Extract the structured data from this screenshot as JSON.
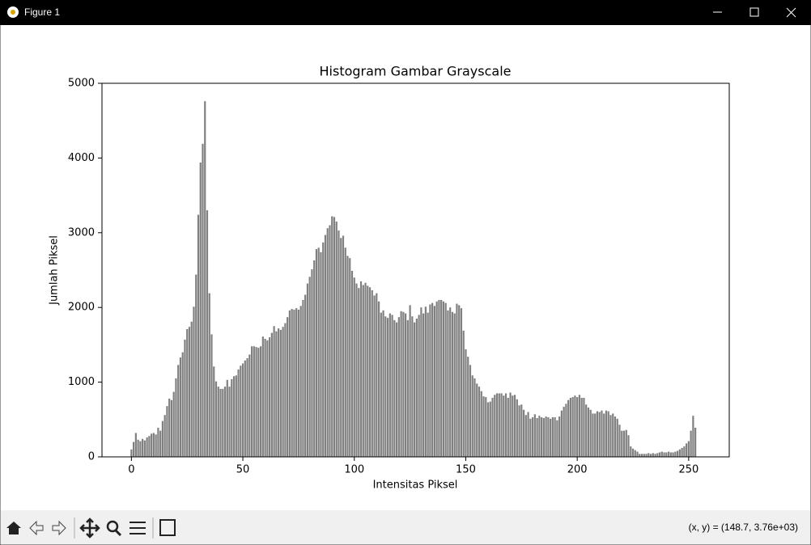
{
  "window": {
    "title": "Figure 1",
    "status": "(x, y) = (148.7, 3.76e+03)"
  },
  "chart_data": {
    "type": "bar",
    "title": "Histogram Gambar Grayscale",
    "x_label": "Intensitas Piksel",
    "y_label": "Jumlah Piksel",
    "color": "#808080",
    "bar_width": 0.8,
    "x": [
      0,
      1,
      2,
      3,
      4,
      5,
      6,
      7,
      8,
      9,
      10,
      11,
      12,
      13,
      14,
      15,
      16,
      17,
      18,
      19,
      20,
      21,
      22,
      23,
      24,
      25,
      26,
      27,
      28,
      29,
      30,
      31,
      32,
      33,
      34,
      35,
      36,
      37,
      38,
      39,
      40,
      41,
      42,
      43,
      44,
      45,
      46,
      47,
      48,
      49,
      50,
      51,
      52,
      53,
      54,
      55,
      56,
      57,
      58,
      59,
      60,
      61,
      62,
      63,
      64,
      65,
      66,
      67,
      68,
      69,
      70,
      71,
      72,
      73,
      74,
      75,
      76,
      77,
      78,
      79,
      80,
      81,
      82,
      83,
      84,
      85,
      86,
      87,
      88,
      89,
      90,
      91,
      92,
      93,
      94,
      95,
      96,
      97,
      98,
      99,
      100,
      101,
      102,
      103,
      104,
      105,
      106,
      107,
      108,
      109,
      110,
      111,
      112,
      113,
      114,
      115,
      116,
      117,
      118,
      119,
      120,
      121,
      122,
      123,
      124,
      125,
      126,
      127,
      128,
      129,
      130,
      131,
      132,
      133,
      134,
      135,
      136,
      137,
      138,
      139,
      140,
      141,
      142,
      143,
      144,
      145,
      146,
      147,
      148,
      149,
      150,
      151,
      152,
      153,
      154,
      155,
      156,
      157,
      158,
      159,
      160,
      161,
      162,
      163,
      164,
      165,
      166,
      167,
      168,
      169,
      170,
      171,
      172,
      173,
      174,
      175,
      176,
      177,
      178,
      179,
      180,
      181,
      182,
      183,
      184,
      185,
      186,
      187,
      188,
      189,
      190,
      191,
      192,
      193,
      194,
      195,
      196,
      197,
      198,
      199,
      200,
      201,
      202,
      203,
      204,
      205,
      206,
      207,
      208,
      209,
      210,
      211,
      212,
      213,
      214,
      215,
      216,
      217,
      218,
      219,
      220,
      221,
      222,
      223,
      224,
      225,
      226,
      227,
      228,
      229,
      230,
      231,
      232,
      233,
      234,
      235,
      236,
      237,
      238,
      239,
      240,
      241,
      242,
      243,
      244,
      245,
      246,
      247,
      248,
      249,
      250,
      251,
      252,
      253,
      254,
      255
    ],
    "values": [
      100,
      200,
      320,
      230,
      210,
      240,
      220,
      260,
      280,
      310,
      320,
      300,
      390,
      350,
      480,
      560,
      680,
      780,
      760,
      870,
      1050,
      1230,
      1330,
      1400,
      1570,
      1710,
      1740,
      1810,
      2010,
      2440,
      3240,
      3940,
      4190,
      4760,
      3300,
      2190,
      1640,
      1210,
      1010,
      940,
      910,
      910,
      940,
      1030,
      940,
      1040,
      1080,
      1090,
      1170,
      1220,
      1250,
      1290,
      1320,
      1370,
      1480,
      1480,
      1470,
      1460,
      1480,
      1610,
      1580,
      1560,
      1600,
      1660,
      1750,
      1680,
      1720,
      1700,
      1740,
      1790,
      1870,
      1960,
      1980,
      1970,
      1990,
      1970,
      2020,
      2100,
      2170,
      2320,
      2410,
      2510,
      2630,
      2780,
      2800,
      2740,
      2870,
      2970,
      3060,
      3100,
      3220,
      3210,
      3150,
      3030,
      2930,
      2960,
      2800,
      2690,
      2660,
      2490,
      2400,
      2320,
      2260,
      2350,
      2300,
      2330,
      2290,
      2270,
      2230,
      2160,
      2190,
      2080,
      1930,
      1960,
      1880,
      1860,
      1920,
      1900,
      1830,
      1800,
      1870,
      1950,
      1940,
      1920,
      1830,
      2030,
      1880,
      1800,
      1850,
      1900,
      2000,
      1920,
      2010,
      1930,
      2040,
      2060,
      2020,
      2080,
      2100,
      2100,
      2080,
      2060,
      1960,
      2000,
      1940,
      1920,
      2050,
      2030,
      1990,
      1690,
      1440,
      1340,
      1230,
      1090,
      1050,
      980,
      940,
      880,
      810,
      800,
      730,
      740,
      790,
      830,
      850,
      850,
      850,
      820,
      850,
      790,
      860,
      820,
      830,
      770,
      690,
      700,
      630,
      560,
      600,
      510,
      530,
      570,
      520,
      550,
      530,
      520,
      540,
      530,
      510,
      530,
      530,
      490,
      540,
      620,
      670,
      710,
      760,
      790,
      800,
      820,
      800,
      830,
      790,
      790,
      700,
      660,
      630,
      580,
      580,
      610,
      600,
      620,
      580,
      620,
      610,
      560,
      580,
      540,
      510,
      430,
      350,
      350,
      360,
      290,
      140,
      110,
      90,
      70,
      40,
      40,
      40,
      40,
      50,
      40,
      50,
      40,
      50,
      60,
      70,
      60,
      60,
      70,
      60,
      60,
      70,
      80,
      100,
      120,
      140,
      180,
      210,
      350,
      550,
      390,
      0,
      0
    ],
    "xlim": [
      -13.2,
      268.2
    ],
    "xticks": [
      0,
      50,
      100,
      150,
      200,
      250
    ],
    "ylim": [
      0,
      5000
    ],
    "yticks": [
      0,
      1000,
      2000,
      3000,
      4000,
      5000
    ]
  }
}
